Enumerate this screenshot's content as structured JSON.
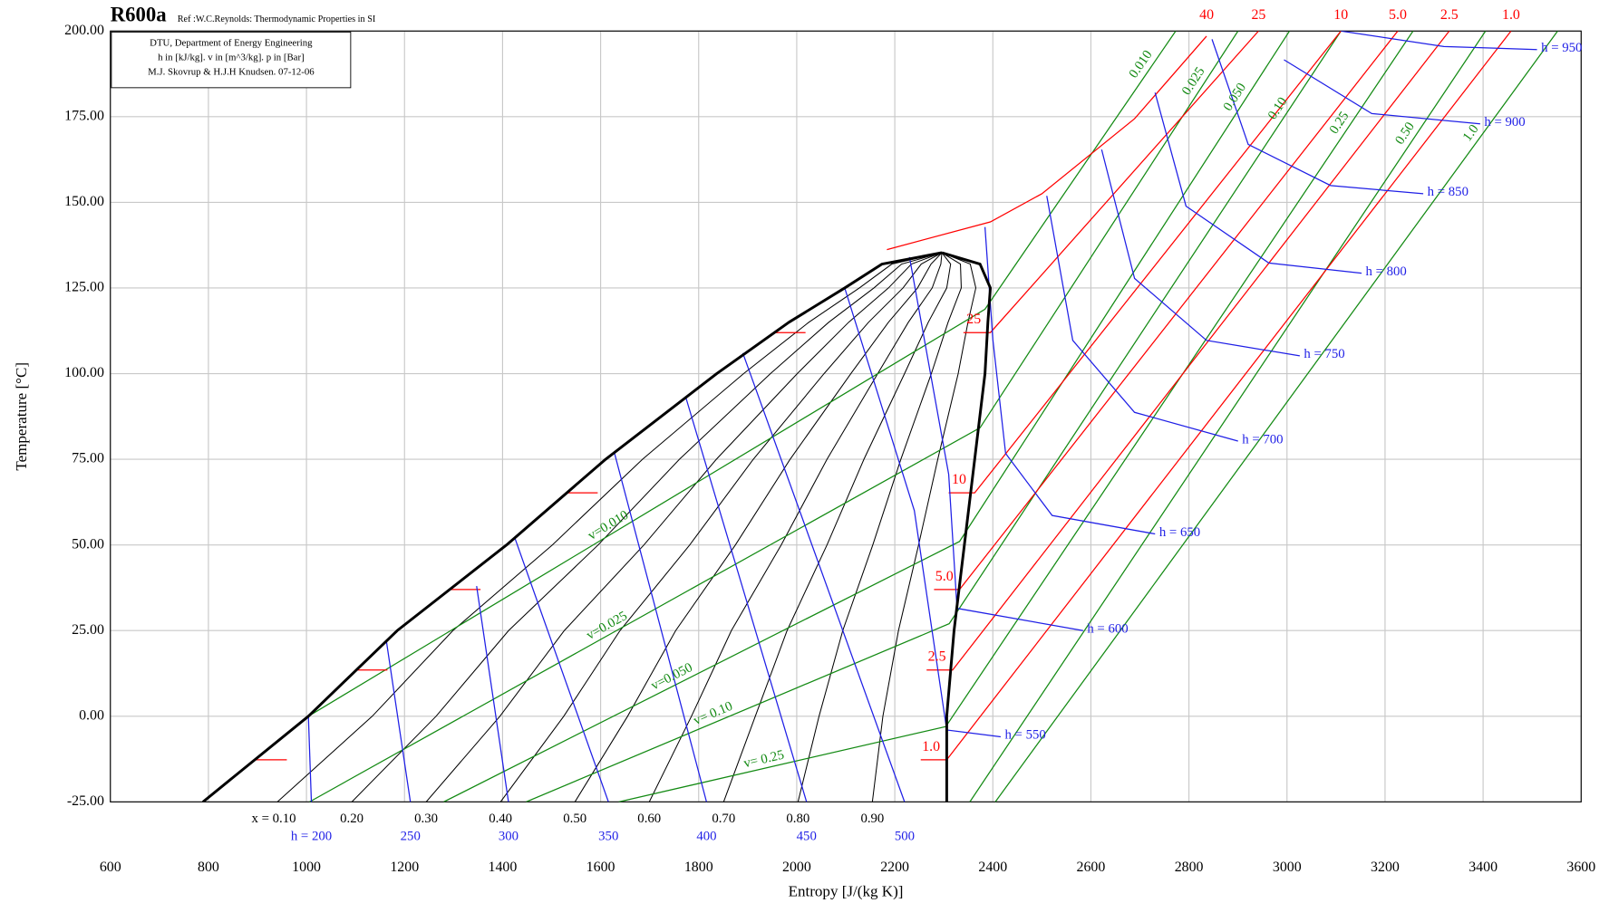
{
  "chart_data": {
    "type": "line",
    "title": "R600a",
    "subtitle": "Ref :W.C.Reynolds: Thermodynamic Properties in SI",
    "notes": [
      "DTU, Department of Energy Engineering",
      "h in [kJ/kg]. v in [m^3/kg]. p in [Bar]",
      "M.J. Skovrup & H.J.H Knudsen. 07-12-06"
    ],
    "xlabel": "Entropy [J/(kg K)]",
    "ylabel": "Temperature [°C]",
    "xlim": [
      600,
      3600
    ],
    "ylim": [
      -25,
      200
    ],
    "xticks": [
      600,
      800,
      1000,
      1200,
      1400,
      1600,
      1800,
      2000,
      2200,
      2400,
      2600,
      2800,
      3000,
      3200,
      3400,
      3600
    ],
    "yticks": [
      {
        "value": 200,
        "label": "200.00"
      },
      {
        "value": 175,
        "label": "175.00"
      },
      {
        "value": 150,
        "label": "150.00"
      },
      {
        "value": 125,
        "label": "125.00"
      },
      {
        "value": 100,
        "label": "100.00"
      },
      {
        "value": 75,
        "label": "75.00"
      },
      {
        "value": 50,
        "label": "50.00"
      },
      {
        "value": 25,
        "label": "25.00"
      },
      {
        "value": 0,
        "label": "0.00"
      },
      {
        "value": -25,
        "label": "-25.00"
      }
    ],
    "grid": true,
    "saturation": {
      "color": "#000000",
      "liquid": {
        "x": [
          789,
          1004,
          1185,
          1408,
          1610,
          1837,
          1984,
          2098,
          2174,
          2296
        ],
        "values": [
          -25,
          0,
          25,
          50,
          75,
          100,
          115,
          125,
          132,
          135.3
        ]
      },
      "vapor": {
        "x": [
          2306,
          2306,
          2321,
          2342,
          2363,
          2384,
          2390,
          2395,
          2374,
          2296
        ],
        "values": [
          -25,
          0,
          25,
          50,
          75,
          100,
          115,
          125,
          132,
          135.3
        ]
      }
    },
    "quality_lines": {
      "color": "#000000",
      "values": [
        {
          "value": 0.1,
          "label": "x = 0.10"
        },
        {
          "value": 0.2,
          "label": "0.20"
        },
        {
          "value": 0.3,
          "label": "0.30"
        },
        {
          "value": 0.4,
          "label": "0.40"
        },
        {
          "value": 0.5,
          "label": "0.50"
        },
        {
          "value": 0.6,
          "label": "0.60"
        },
        {
          "value": 0.7,
          "label": "0.70"
        },
        {
          "value": 0.8,
          "label": "0.80"
        },
        {
          "value": 0.9,
          "label": "0.90"
        }
      ]
    },
    "isochores": {
      "color": "#138a13",
      "lines": [
        {
          "label": "0.010",
          "inner_label": "v=0.010",
          "x": [
            1004,
            2384,
            2773
          ],
          "values": [
            0,
            118.8,
            200
          ]
        },
        {
          "label": "0.025",
          "inner_label": "v=0.025",
          "x": [
            1006,
            2374,
            2900
          ],
          "values": [
            -25,
            84.2,
            200
          ]
        },
        {
          "label": "0.050",
          "inner_label": "v=0.050",
          "x": [
            1280,
            2332,
            3005
          ],
          "values": [
            -25,
            51,
            200
          ]
        },
        {
          "label": "0.10",
          "inner_label": "v= 0.10",
          "x": [
            1448,
            2311,
            3110
          ],
          "values": [
            -25,
            27,
            200
          ]
        },
        {
          "label": "0.25",
          "inner_label": "v= 0.25",
          "x": [
            1637,
            2304,
            3257
          ],
          "values": [
            -25,
            -3,
            200
          ]
        },
        {
          "label": "0.50",
          "x": [
            2353,
            3405
          ],
          "values": [
            -25,
            200
          ]
        },
        {
          "label": "1.0",
          "x": [
            2405,
            3552
          ],
          "values": [
            -25,
            200
          ]
        }
      ]
    },
    "isobars": {
      "color": "#ff0000",
      "lines": [
        {
          "label": "40",
          "x": [
            2184,
            2395,
            2500,
            2689,
            2836
          ],
          "values": [
            136.2,
            144.3,
            152.5,
            174.4,
            198.5
          ]
        },
        {
          "label": "25",
          "x": [
            1955,
            2018,
            null,
            2340,
            2395,
            2942
          ],
          "values": [
            112,
            112,
            null,
            112,
            112,
            200
          ]
        },
        {
          "label": "10",
          "x": [
            1531,
            1594,
            null,
            2310,
            2363,
            3110
          ],
          "values": [
            65.2,
            65.2,
            null,
            65.2,
            65.2,
            200
          ]
        },
        {
          "label": "5.0",
          "x": [
            1292,
            1355,
            null,
            2280,
            2332,
            3226
          ],
          "values": [
            37,
            37,
            null,
            37,
            37,
            200
          ]
        },
        {
          "label": "2.5",
          "x": [
            1102,
            1165,
            null,
            2265,
            2318,
            3331
          ],
          "values": [
            13.5,
            13.5,
            null,
            13.5,
            13.5,
            200
          ]
        },
        {
          "label": "1.0",
          "x": [
            897,
            960,
            null,
            2253,
            2306,
            3457
          ],
          "values": [
            -12.7,
            -12.7,
            null,
            -12.7,
            -12.7,
            200
          ]
        }
      ]
    },
    "isenthalps": {
      "color": "#1f1fe6",
      "lines": [
        {
          "label": "h = 200",
          "x": [
            1004,
            1010
          ],
          "values": [
            0,
            -25
          ]
        },
        {
          "label": "250",
          "x": [
            1163,
            1212
          ],
          "values": [
            22,
            -25
          ]
        },
        {
          "label": "300",
          "x": [
            1347,
            1412
          ],
          "values": [
            38,
            -25
          ]
        },
        {
          "label": "350",
          "x": [
            1425,
            1616
          ],
          "values": [
            52,
            -25
          ]
        },
        {
          "label": "400",
          "x": [
            1628,
            1816
          ],
          "values": [
            77,
            -25
          ]
        },
        {
          "label": "450",
          "x": [
            1774,
            2020
          ],
          "values": [
            93,
            -25
          ]
        },
        {
          "label": "500",
          "x": [
            1890,
            2220
          ],
          "values": [
            106,
            -25
          ]
        },
        {
          "label": "h = 550",
          "x": [
            2098,
            2240,
            2306,
            2416
          ],
          "values": [
            125,
            60,
            -4,
            -6
          ]
        },
        {
          "label": "h = 600",
          "x": [
            2230,
            2310,
            2327,
            2584
          ],
          "values": [
            134,
            70.6,
            31.5,
            25
          ]
        },
        {
          "label": "h = 650",
          "x": [
            2384,
            2400,
            2426,
            2521,
            2731
          ],
          "values": [
            142.8,
            110,
            76.7,
            58.6,
            53.2
          ]
        },
        {
          "label": "h = 700",
          "x": [
            2510,
            2563,
            2689,
            2900
          ],
          "values": [
            151.9,
            109.7,
            88.7,
            80.3
          ]
        },
        {
          "label": "h = 750",
          "x": [
            2622,
            2689,
            2836,
            3026
          ],
          "values": [
            165.4,
            127.8,
            109.7,
            105.2
          ]
        },
        {
          "label": "h = 800",
          "x": [
            2731,
            2794,
            2963,
            3152
          ],
          "values": [
            182,
            148.9,
            132.3,
            129.3
          ]
        },
        {
          "label": "h = 850",
          "x": [
            2847,
            2921,
            3089,
            3278
          ],
          "values": [
            197.6,
            166.9,
            154.9,
            152.5
          ]
        },
        {
          "label": "h = 900",
          "x": [
            2994,
            3173,
            3394
          ],
          "values": [
            191.6,
            175.9,
            172.9
          ]
        },
        {
          "label": "h = 950",
          "x": [
            3110,
            3320,
            3510
          ],
          "values": [
            200,
            195.5,
            194.6
          ]
        }
      ]
    }
  }
}
